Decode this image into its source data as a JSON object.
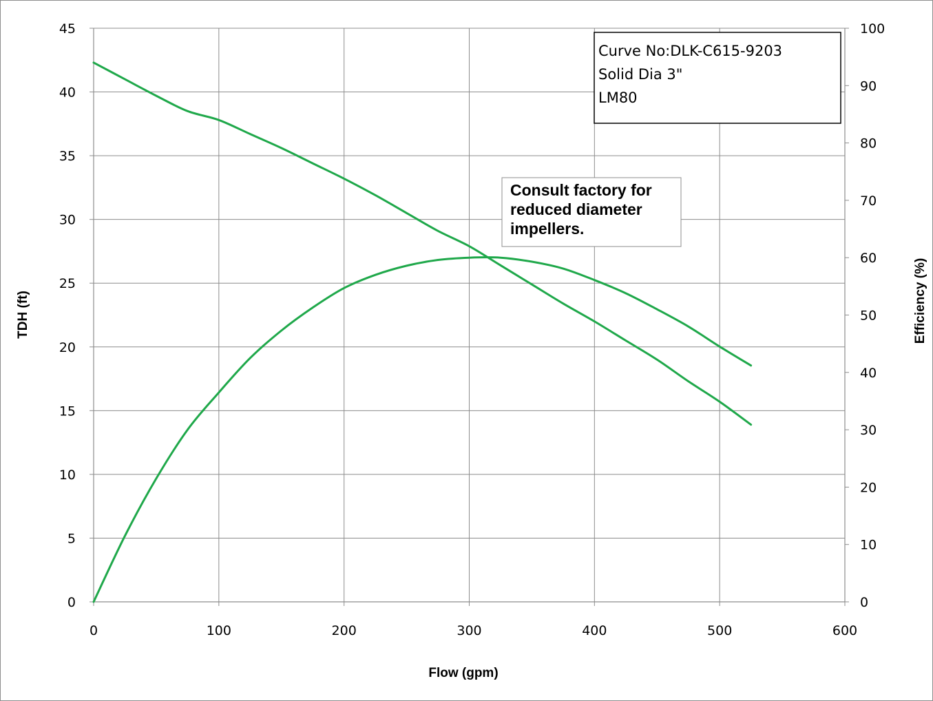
{
  "chart_data": {
    "type": "line",
    "xlabel": "Flow (gpm)",
    "ylabel": "TDH (ft)",
    "y2label": "Efficiency (%)",
    "xlim": [
      0,
      600
    ],
    "ylim": [
      0,
      45
    ],
    "y2lim": [
      0,
      100
    ],
    "x_ticks": [
      "0",
      "100",
      "200",
      "300",
      "400",
      "500",
      "600"
    ],
    "y_ticks": [
      "0",
      "5",
      "10",
      "15",
      "20",
      "25",
      "30",
      "35",
      "40",
      "45"
    ],
    "y2_ticks": [
      "0",
      "10",
      "20",
      "30",
      "40",
      "50",
      "60",
      "70",
      "80",
      "90",
      "100"
    ],
    "grid": true,
    "line_color": "#1fa84a",
    "series": [
      {
        "axis": "left",
        "x": [
          0,
          25,
          50,
          75,
          100,
          125,
          150,
          175,
          200,
          225,
          250,
          275,
          300,
          325,
          350,
          375,
          400,
          425,
          450,
          475,
          500,
          525
        ],
        "values": [
          42.3,
          41.0,
          39.7,
          38.5,
          37.8,
          36.7,
          35.6,
          34.4,
          33.2,
          31.9,
          30.5,
          29.1,
          27.9,
          26.4,
          24.9,
          23.4,
          22.0,
          20.5,
          19.0,
          17.3,
          15.7,
          13.9
        ]
      },
      {
        "axis": "right",
        "x": [
          0,
          25,
          50,
          75,
          100,
          125,
          150,
          175,
          200,
          225,
          250,
          275,
          300,
          325,
          350,
          375,
          400,
          425,
          450,
          475,
          500,
          525
        ],
        "values": [
          0,
          11.5,
          21.5,
          30,
          36.5,
          42.5,
          47.3,
          51.3,
          54.7,
          57.0,
          58.6,
          59.6,
          60.0,
          60.0,
          59.3,
          58.1,
          56.1,
          53.8,
          51.0,
          48.0,
          44.5,
          41.2
        ]
      }
    ],
    "annotations": {
      "info_lines": [
        "Curve No:DLK-C615-9203",
        "Solid Dia 3\"",
        "LM80"
      ],
      "note_lines": [
        "Consult factory for",
        "reduced diameter",
        "impellers."
      ]
    }
  }
}
